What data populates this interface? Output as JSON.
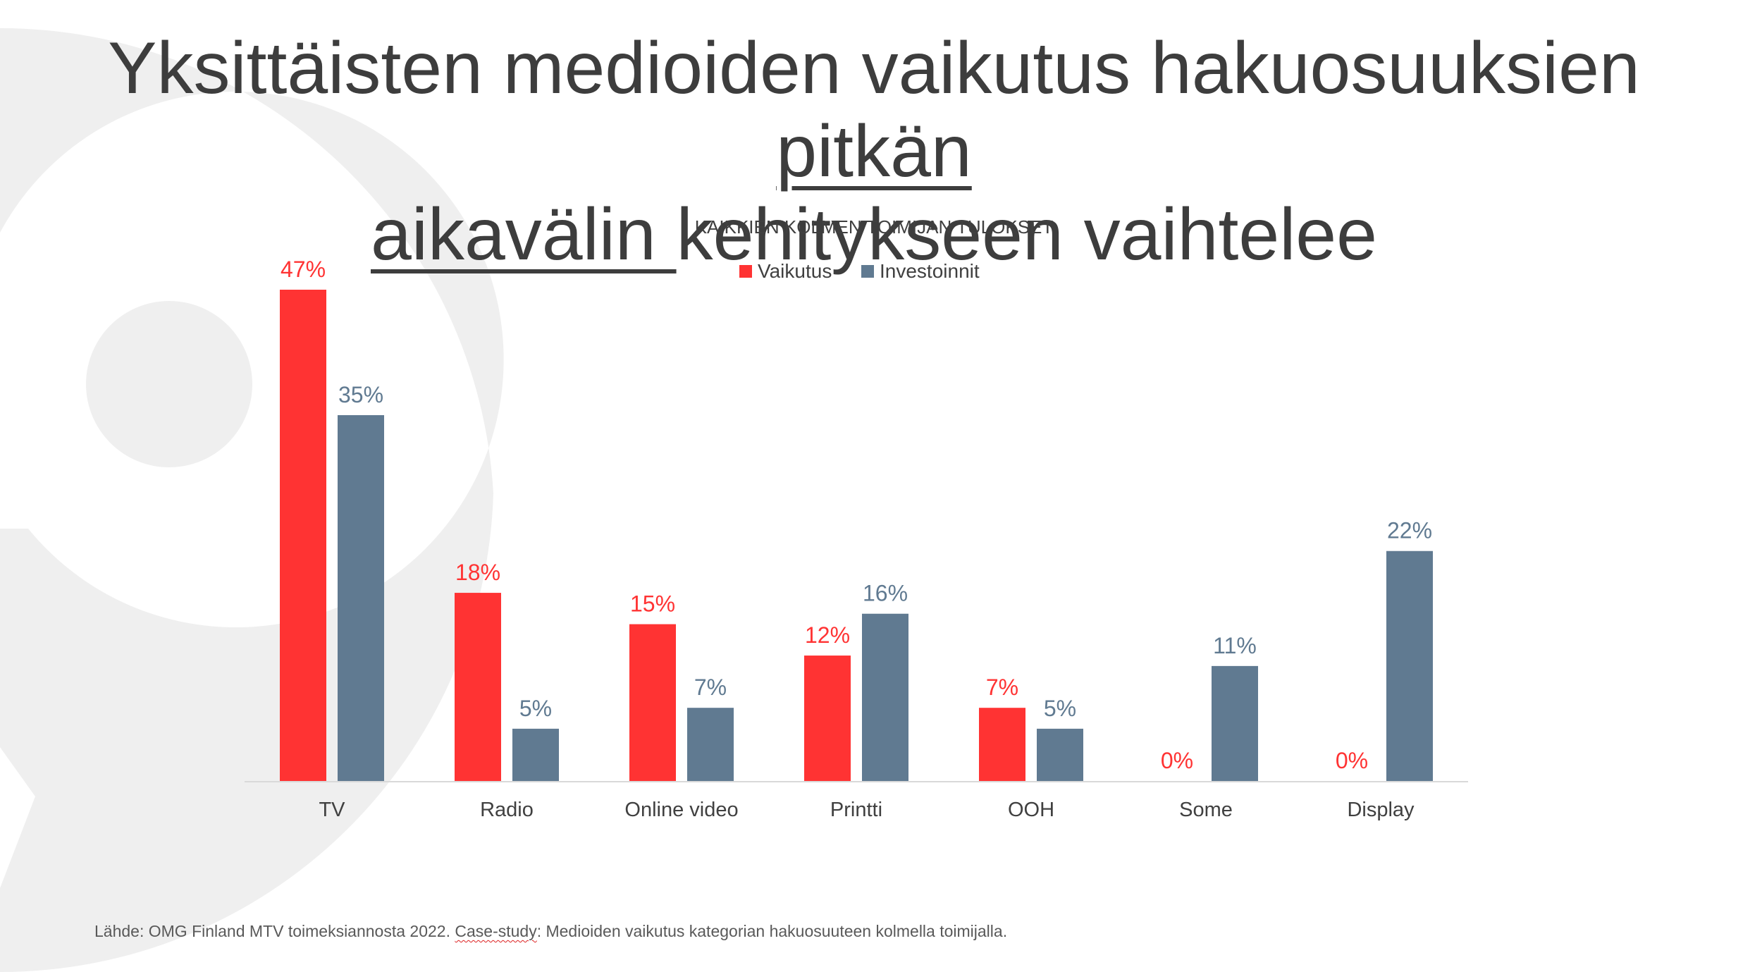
{
  "slide": {
    "title_part1": "Yksittäisten medioiden vaikutus hakuosuuksien ",
    "title_underlined_1": "pitkän",
    "title_underlined_2": "aikavälin ",
    "title_part2": "kehitykseen vaihtelee",
    "footer_prefix": "Lähde: OMG Finland MTV toimeksiannosta 2022. ",
    "footer_flagged": "Case-study",
    "footer_suffix": ": Medioiden vaikutus kategorian hakuosuuteen kolmella toimijalla."
  },
  "colors": {
    "vaikutus": "#ff3333",
    "investoinnit": "#607a91",
    "axis": "#d9d9d9",
    "text": "#404040",
    "decor": "#efefef"
  },
  "chart_data": {
    "type": "bar",
    "title": "KAIKKIEN KOLMEN TOIMIJAN TULOKSET",
    "categories": [
      "TV",
      "Radio",
      "Online video",
      "Printti",
      "OOH",
      "Some",
      "Display"
    ],
    "series": [
      {
        "name": "Vaikutus",
        "values": [
          47,
          18,
          15,
          12,
          7,
          0,
          0
        ],
        "labels": [
          "47%",
          "18%",
          "15%",
          "12%",
          "7%",
          "0%",
          "0%"
        ]
      },
      {
        "name": "Investoinnit",
        "values": [
          35,
          5,
          7,
          16,
          5,
          11,
          22
        ],
        "labels": [
          "35%",
          "5%",
          "7%",
          "16%",
          "5%",
          "11%",
          "22%"
        ]
      }
    ],
    "ylim": [
      0,
      47
    ],
    "legend": "top-center",
    "grid": false
  }
}
